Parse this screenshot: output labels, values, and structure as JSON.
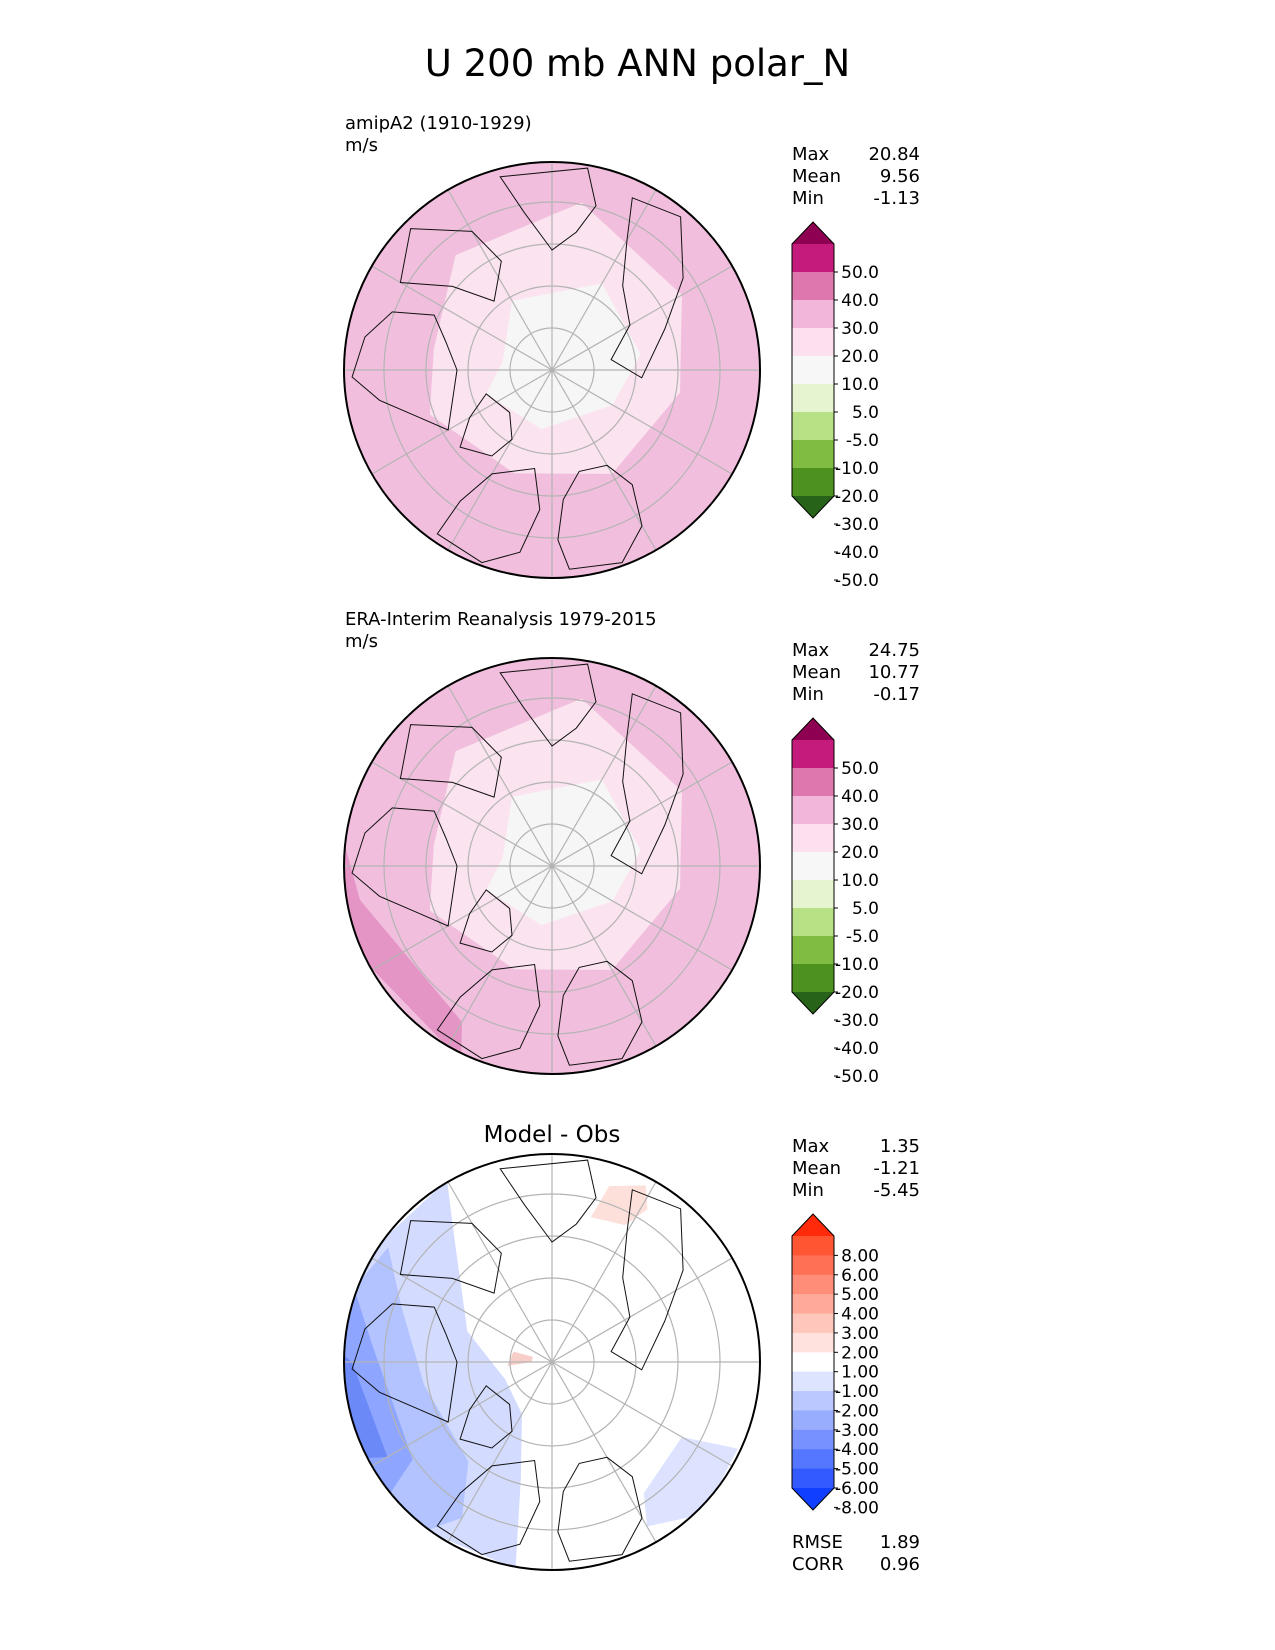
{
  "figure_title": "U 200 mb ANN polar_N",
  "panels": [
    {
      "id": "model",
      "title": "amipA2 (1910-1929)",
      "units": "m/s",
      "stats": [
        {
          "label": "Max",
          "value": "20.84"
        },
        {
          "label": "Mean",
          "value": "9.56"
        },
        {
          "label": "Min",
          "value": "-1.13"
        }
      ],
      "colorbar": {
        "labels": [
          "50.0",
          "40.0",
          "30.0",
          "20.0",
          "10.0",
          "5.0",
          "-5.0",
          "-10.0",
          "-20.0",
          "-30.0",
          "-40.0",
          "-50.0"
        ],
        "colors": [
          "#8e0152",
          "#c51b7d",
          "#de77ae",
          "#f1b6da",
          "#fde0ef",
          "#f7f7f7",
          "#e6f5d0",
          "#b8e186",
          "#7fbc41",
          "#4d9221",
          "#276419"
        ]
      }
    },
    {
      "id": "obs",
      "title": "ERA-Interim Reanalysis 1979-2015",
      "units": "m/s",
      "stats": [
        {
          "label": "Max",
          "value": "24.75"
        },
        {
          "label": "Mean",
          "value": "10.77"
        },
        {
          "label": "Min",
          "value": "-0.17"
        }
      ],
      "colorbar": {
        "labels": [
          "50.0",
          "40.0",
          "30.0",
          "20.0",
          "10.0",
          "5.0",
          "-5.0",
          "-10.0",
          "-20.0",
          "-30.0",
          "-40.0",
          "-50.0"
        ],
        "colors": [
          "#8e0152",
          "#c51b7d",
          "#de77ae",
          "#f1b6da",
          "#fde0ef",
          "#f7f7f7",
          "#e6f5d0",
          "#b8e186",
          "#7fbc41",
          "#4d9221",
          "#276419"
        ]
      }
    },
    {
      "id": "diff",
      "title": "Model - Obs",
      "stats": [
        {
          "label": "Max",
          "value": "1.35"
        },
        {
          "label": "Mean",
          "value": "-1.21"
        },
        {
          "label": "Min",
          "value": "-5.45"
        }
      ],
      "extra_stats": [
        {
          "label": "RMSE",
          "value": "1.89"
        },
        {
          "label": "CORR",
          "value": "0.96"
        }
      ],
      "colorbar": {
        "labels": [
          "8.00",
          "6.00",
          "5.00",
          "4.00",
          "3.00",
          "2.00",
          "1.00",
          "-1.00",
          "-2.00",
          "-3.00",
          "-4.00",
          "-5.00",
          "-6.00",
          "-8.00"
        ],
        "colors": [
          "#ff2a0a",
          "#ff5533",
          "#ff7055",
          "#ff8d77",
          "#ffaa99",
          "#ffc6bb",
          "#ffe2dd",
          "#ffffff",
          "#dde4ff",
          "#bbc8ff",
          "#99adff",
          "#7791ff",
          "#5576ff",
          "#335aff",
          "#113fff"
        ]
      }
    }
  ]
}
